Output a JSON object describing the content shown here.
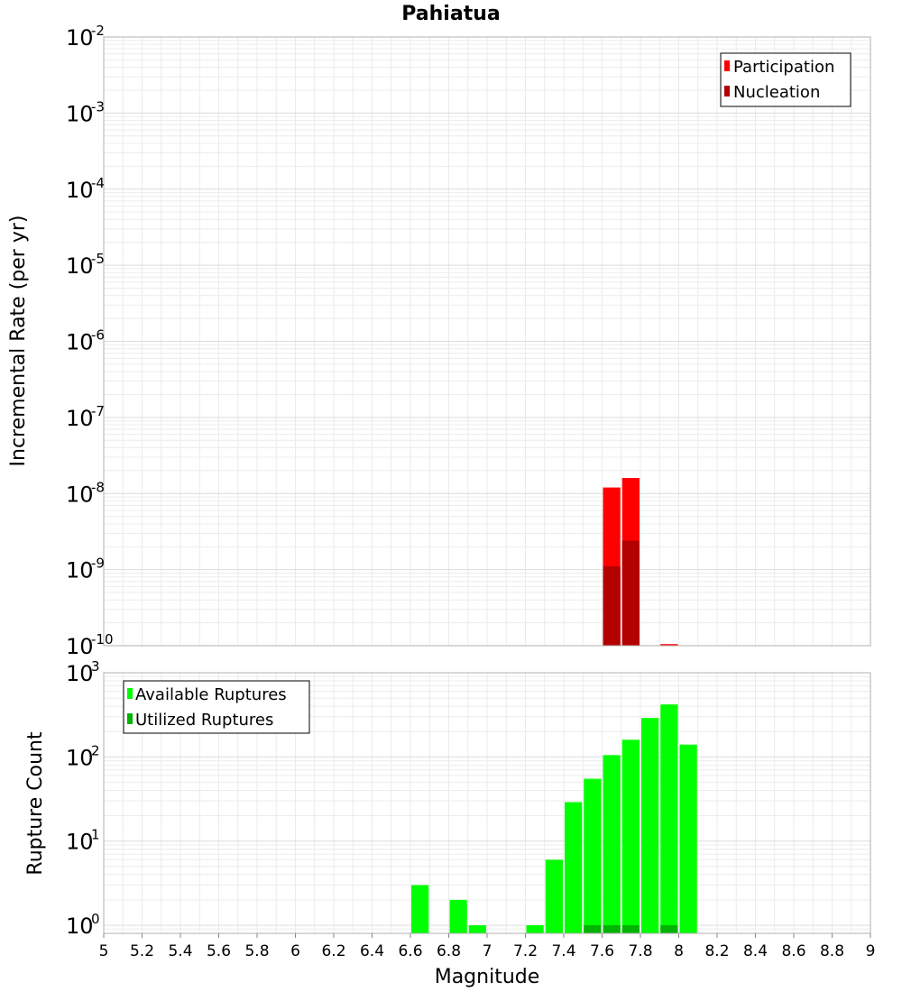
{
  "chart_data": [
    {
      "type": "bar",
      "title": "Pahiatua",
      "xlabel": "",
      "ylabel": "Incremental Rate (per yr)",
      "yscale": "log",
      "ylim": [
        1e-10,
        0.01
      ],
      "xlim": [
        5,
        9
      ],
      "yticks": [
        {
          "base": "10",
          "exp": "-10",
          "value": 1e-10
        },
        {
          "base": "10",
          "exp": "-9",
          "value": 1e-09
        },
        {
          "base": "10",
          "exp": "-8",
          "value": 1e-08
        },
        {
          "base": "10",
          "exp": "-7",
          "value": 1e-07
        },
        {
          "base": "10",
          "exp": "-6",
          "value": 1e-06
        },
        {
          "base": "10",
          "exp": "-5",
          "value": 1e-05
        },
        {
          "base": "10",
          "exp": "-4",
          "value": 0.0001
        },
        {
          "base": "10",
          "exp": "-3",
          "value": 0.001
        },
        {
          "base": "10",
          "exp": "-2",
          "value": 0.01
        }
      ],
      "grid": true,
      "legend_position": "top-right",
      "series": [
        {
          "name": "Participation",
          "color": "#ff0000",
          "points": [
            {
              "x": 7.65,
              "y": 1.2e-08
            },
            {
              "x": 7.75,
              "y": 1.6e-08
            },
            {
              "x": 7.95,
              "y": 1.05e-10
            }
          ]
        },
        {
          "name": "Nucleation",
          "color": "#b30000",
          "points": [
            {
              "x": 7.65,
              "y": 1.1e-09
            },
            {
              "x": 7.75,
              "y": 2.4e-09
            }
          ]
        }
      ]
    },
    {
      "type": "bar",
      "title": "",
      "xlabel": "Magnitude",
      "ylabel": "Rupture Count",
      "yscale": "log",
      "ylim": [
        0.8,
        1000
      ],
      "xlim": [
        5,
        9
      ],
      "xticks": [
        "5",
        "5.2",
        "5.4",
        "5.6",
        "5.8",
        "6",
        "6.2",
        "6.4",
        "6.6",
        "6.8",
        "7",
        "7.2",
        "7.4",
        "7.6",
        "7.8",
        "8",
        "8.2",
        "8.4",
        "8.6",
        "8.8",
        "9"
      ],
      "yticks": [
        {
          "base": "10",
          "exp": "0",
          "value": 1
        },
        {
          "base": "10",
          "exp": "1",
          "value": 10
        },
        {
          "base": "10",
          "exp": "2",
          "value": 100
        },
        {
          "base": "10",
          "exp": "3",
          "value": 1000
        }
      ],
      "grid": true,
      "legend_position": "top-left",
      "series": [
        {
          "name": "Available Ruptures",
          "color": "#00ff00",
          "points": [
            {
              "x": 6.65,
              "y": 3
            },
            {
              "x": 6.85,
              "y": 2
            },
            {
              "x": 6.95,
              "y": 1
            },
            {
              "x": 7.25,
              "y": 1
            },
            {
              "x": 7.35,
              "y": 6
            },
            {
              "x": 7.45,
              "y": 29
            },
            {
              "x": 7.55,
              "y": 55
            },
            {
              "x": 7.65,
              "y": 105
            },
            {
              "x": 7.75,
              "y": 160
            },
            {
              "x": 7.85,
              "y": 290
            },
            {
              "x": 7.95,
              "y": 420
            },
            {
              "x": 8.05,
              "y": 140
            }
          ]
        },
        {
          "name": "Utilized Ruptures",
          "color": "#00b300",
          "points": [
            {
              "x": 7.55,
              "y": 1
            },
            {
              "x": 7.65,
              "y": 1
            },
            {
              "x": 7.75,
              "y": 1
            },
            {
              "x": 7.95,
              "y": 1
            }
          ]
        }
      ]
    }
  ]
}
